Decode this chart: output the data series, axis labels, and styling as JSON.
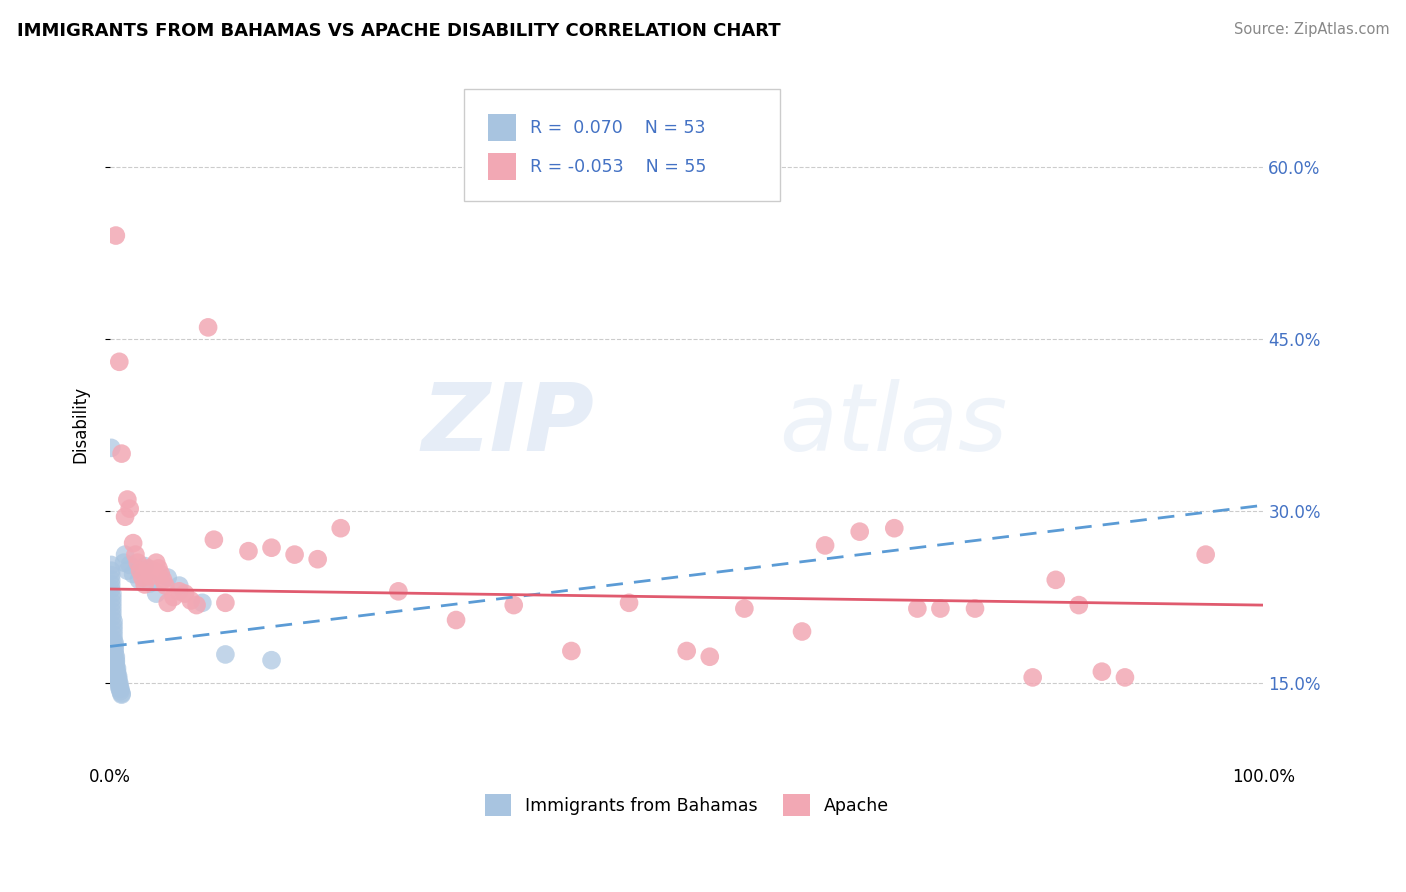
{
  "title": "IMMIGRANTS FROM BAHAMAS VS APACHE DISABILITY CORRELATION CHART",
  "source": "Source: ZipAtlas.com",
  "ylabel": "Disability",
  "xlim": [
    0,
    1.0
  ],
  "ylim": [
    0.08,
    0.67
  ],
  "yticks": [
    0.15,
    0.3,
    0.45,
    0.6
  ],
  "ytick_labels": [
    "15.0%",
    "30.0%",
    "45.0%",
    "60.0%"
  ],
  "xtick_labels": [
    "0.0%",
    "100.0%"
  ],
  "legend_r1": "R =  0.070",
  "legend_n1": "N = 53",
  "legend_r2": "R = -0.053",
  "legend_n2": "N = 55",
  "blue_color": "#a8c4e0",
  "pink_color": "#f2a8b4",
  "trend_blue_color": "#5b9bd5",
  "trend_pink_color": "#e05a6e",
  "legend_text_color": "#4472c4",
  "watermark_color": "#d0dff0",
  "blue_trend": [
    0.0,
    0.182,
    1.0,
    0.305
  ],
  "pink_trend": [
    0.0,
    0.232,
    1.0,
    0.218
  ],
  "blue_dots": [
    [
      0.001,
      0.355
    ],
    [
      0.001,
      0.253
    ],
    [
      0.001,
      0.248
    ],
    [
      0.001,
      0.244
    ],
    [
      0.001,
      0.24
    ],
    [
      0.001,
      0.236
    ],
    [
      0.001,
      0.232
    ],
    [
      0.002,
      0.228
    ],
    [
      0.002,
      0.224
    ],
    [
      0.002,
      0.22
    ],
    [
      0.002,
      0.216
    ],
    [
      0.002,
      0.212
    ],
    [
      0.002,
      0.208
    ],
    [
      0.003,
      0.204
    ],
    [
      0.003,
      0.2
    ],
    [
      0.003,
      0.196
    ],
    [
      0.003,
      0.192
    ],
    [
      0.003,
      0.188
    ],
    [
      0.004,
      0.185
    ],
    [
      0.004,
      0.182
    ],
    [
      0.004,
      0.179
    ],
    [
      0.004,
      0.176
    ],
    [
      0.005,
      0.173
    ],
    [
      0.005,
      0.17
    ],
    [
      0.005,
      0.168
    ],
    [
      0.005,
      0.165
    ],
    [
      0.006,
      0.163
    ],
    [
      0.006,
      0.16
    ],
    [
      0.006,
      0.158
    ],
    [
      0.007,
      0.156
    ],
    [
      0.007,
      0.154
    ],
    [
      0.007,
      0.152
    ],
    [
      0.008,
      0.15
    ],
    [
      0.008,
      0.148
    ],
    [
      0.008,
      0.146
    ],
    [
      0.009,
      0.145
    ],
    [
      0.009,
      0.143
    ],
    [
      0.01,
      0.141
    ],
    [
      0.01,
      0.14
    ],
    [
      0.012,
      0.255
    ],
    [
      0.013,
      0.262
    ],
    [
      0.015,
      0.248
    ],
    [
      0.017,
      0.253
    ],
    [
      0.02,
      0.245
    ],
    [
      0.025,
      0.24
    ],
    [
      0.03,
      0.252
    ],
    [
      0.035,
      0.237
    ],
    [
      0.04,
      0.228
    ],
    [
      0.05,
      0.242
    ],
    [
      0.06,
      0.235
    ],
    [
      0.08,
      0.22
    ],
    [
      0.1,
      0.175
    ],
    [
      0.14,
      0.17
    ]
  ],
  "pink_dots": [
    [
      0.005,
      0.54
    ],
    [
      0.008,
      0.43
    ],
    [
      0.01,
      0.35
    ],
    [
      0.013,
      0.295
    ],
    [
      0.015,
      0.31
    ],
    [
      0.017,
      0.302
    ],
    [
      0.02,
      0.272
    ],
    [
      0.022,
      0.262
    ],
    [
      0.024,
      0.255
    ],
    [
      0.026,
      0.248
    ],
    [
      0.028,
      0.242
    ],
    [
      0.03,
      0.236
    ],
    [
      0.033,
      0.25
    ],
    [
      0.035,
      0.243
    ],
    [
      0.038,
      0.248
    ],
    [
      0.04,
      0.255
    ],
    [
      0.042,
      0.25
    ],
    [
      0.044,
      0.245
    ],
    [
      0.046,
      0.24
    ],
    [
      0.048,
      0.235
    ],
    [
      0.05,
      0.22
    ],
    [
      0.055,
      0.225
    ],
    [
      0.06,
      0.23
    ],
    [
      0.065,
      0.228
    ],
    [
      0.07,
      0.222
    ],
    [
      0.075,
      0.218
    ],
    [
      0.085,
      0.46
    ],
    [
      0.09,
      0.275
    ],
    [
      0.1,
      0.22
    ],
    [
      0.12,
      0.265
    ],
    [
      0.14,
      0.268
    ],
    [
      0.16,
      0.262
    ],
    [
      0.18,
      0.258
    ],
    [
      0.2,
      0.285
    ],
    [
      0.25,
      0.23
    ],
    [
      0.3,
      0.205
    ],
    [
      0.35,
      0.218
    ],
    [
      0.4,
      0.178
    ],
    [
      0.45,
      0.22
    ],
    [
      0.5,
      0.178
    ],
    [
      0.52,
      0.173
    ],
    [
      0.55,
      0.215
    ],
    [
      0.6,
      0.195
    ],
    [
      0.62,
      0.27
    ],
    [
      0.65,
      0.282
    ],
    [
      0.68,
      0.285
    ],
    [
      0.7,
      0.215
    ],
    [
      0.72,
      0.215
    ],
    [
      0.75,
      0.215
    ],
    [
      0.8,
      0.155
    ],
    [
      0.82,
      0.24
    ],
    [
      0.84,
      0.218
    ],
    [
      0.86,
      0.16
    ],
    [
      0.88,
      0.155
    ],
    [
      0.95,
      0.262
    ]
  ]
}
